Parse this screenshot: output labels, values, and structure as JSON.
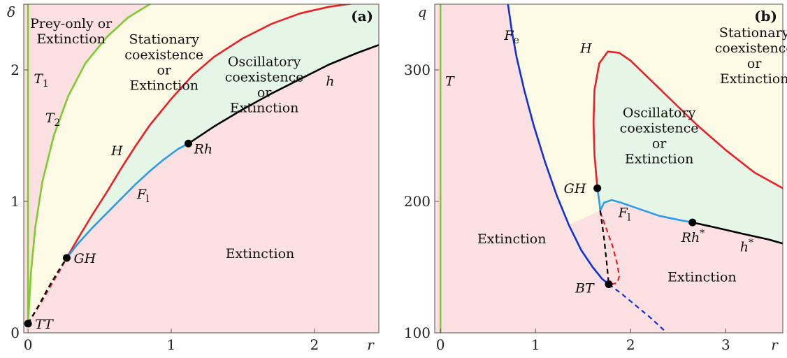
{
  "colors": {
    "pink": "#fde0e2",
    "yellow": "#fdfbe6",
    "green": "#e6f6e6",
    "T_green": "#7ccc2c",
    "hopf_red": "#e8202a",
    "fold_blue": "#2f9ae6",
    "fold_e_blue": "#1030d8",
    "homoclinic_black": "#000000"
  },
  "chart_data": [
    {
      "panel": "(a)",
      "type": "line",
      "xlabel": "r",
      "ylabel": "δ",
      "xlim": [
        -0.03,
        2.45
      ],
      "ylim": [
        0,
        2.5
      ],
      "xticks": [
        0,
        1,
        2
      ],
      "yticks": [
        0,
        1,
        2
      ],
      "grid": false,
      "regions": [
        {
          "label_lines": [
            "Prey-only or",
            "Extinction"
          ],
          "at": [
            0.3,
            2.32
          ]
        },
        {
          "label_lines": [
            "Stationary",
            "coexistence",
            "or",
            "Extinction"
          ],
          "at": [
            0.95,
            2.2
          ]
        },
        {
          "label_lines": [
            "Oscillatory",
            "coexistence",
            "or",
            "Extinction"
          ],
          "at": [
            1.65,
            2.03
          ]
        },
        {
          "label_lines": [
            "Extinction"
          ],
          "at": [
            1.62,
            0.57
          ]
        }
      ],
      "curves": [
        {
          "name": "T1",
          "label": "T",
          "sub": "1",
          "label_at": [
            0.04,
            1.9
          ],
          "color": "T_green",
          "dash": false,
          "x": [
            0,
            0
          ],
          "y": [
            0.07,
            2.5
          ]
        },
        {
          "name": "T2",
          "label": "T",
          "sub": "2",
          "label_at": [
            0.12,
            1.6
          ],
          "color": "T_green",
          "dash": false,
          "x": [
            0,
            0.02,
            0.05,
            0.1,
            0.18,
            0.28,
            0.4,
            0.55,
            0.7,
            0.85,
            0.98
          ],
          "y": [
            0.07,
            0.45,
            0.8,
            1.15,
            1.5,
            1.8,
            2.05,
            2.25,
            2.4,
            2.5,
            2.55
          ]
        },
        {
          "name": "H",
          "label": "H",
          "label_at": [
            0.58,
            1.35
          ],
          "color": "hopf_red",
          "dash": false,
          "x": [
            0.27,
            0.35,
            0.45,
            0.55,
            0.65,
            0.75,
            0.85,
            1.0,
            1.15,
            1.3,
            1.5,
            1.7,
            1.9,
            2.1,
            2.3,
            2.42
          ],
          "y": [
            0.57,
            0.72,
            0.9,
            1.07,
            1.25,
            1.42,
            1.58,
            1.78,
            1.96,
            2.1,
            2.24,
            2.35,
            2.43,
            2.48,
            2.51,
            2.52
          ]
        },
        {
          "name": "H-dashed",
          "color": "hopf_red",
          "dash": true,
          "x": [
            0.0,
            0.08,
            0.16,
            0.22,
            0.27
          ],
          "y": [
            0.07,
            0.21,
            0.36,
            0.47,
            0.57
          ]
        },
        {
          "name": "Fl",
          "label": "F",
          "sub": "l",
          "label_at": [
            0.76,
            1.02
          ],
          "color": "fold_blue",
          "dash": false,
          "x": [
            0.27,
            0.35,
            0.45,
            0.55,
            0.65,
            0.75,
            0.85,
            0.95,
            1.05,
            1.12
          ],
          "y": [
            0.57,
            0.68,
            0.8,
            0.91,
            1.02,
            1.13,
            1.23,
            1.32,
            1.4,
            1.44
          ]
        },
        {
          "name": "h",
          "label": "h",
          "label_at": [
            2.08,
            1.88
          ],
          "color": "homoclinic_black",
          "dash": false,
          "x": [
            1.12,
            1.3,
            1.5,
            1.7,
            1.9,
            2.1,
            2.3,
            2.45
          ],
          "y": [
            1.44,
            1.57,
            1.7,
            1.82,
            1.93,
            2.04,
            2.13,
            2.19
          ]
        },
        {
          "name": "h-dashed",
          "color": "homoclinic_black",
          "dash": true,
          "x": [
            0.0,
            0.07,
            0.14,
            0.2,
            0.27
          ],
          "y": [
            0.07,
            0.2,
            0.34,
            0.45,
            0.57
          ]
        }
      ],
      "points": [
        {
          "label": "TT",
          "x": 0.0,
          "y": 0.07,
          "label_dx": 10,
          "label_dy": 7
        },
        {
          "label": "GH",
          "x": 0.27,
          "y": 0.57,
          "label_dx": 10,
          "label_dy": 7
        },
        {
          "label": "Rh",
          "x": 1.12,
          "y": 1.44,
          "label_dx": 8,
          "label_dy": 14
        }
      ]
    },
    {
      "panel": "(b)",
      "type": "line",
      "xlabel": "r",
      "ylabel": "q",
      "xlim": [
        -0.06,
        3.6
      ],
      "ylim": [
        100,
        350
      ],
      "xticks": [
        0,
        1,
        2,
        3
      ],
      "yticks": [
        100,
        200,
        300
      ],
      "grid": false,
      "regions": [
        {
          "label_lines": [
            "Stationary",
            "coexistence",
            "or",
            "Extinction"
          ],
          "at": [
            3.3,
            325
          ]
        },
        {
          "label_lines": [
            "Oscillatory",
            "coexistence",
            "or",
            "Extinction"
          ],
          "at": [
            2.3,
            264
          ]
        },
        {
          "label_lines": [
            "Extinction"
          ],
          "at": [
            0.75,
            168
          ]
        },
        {
          "label_lines": [
            "Extinction"
          ],
          "at": [
            2.75,
            139
          ]
        }
      ],
      "curves": [
        {
          "name": "T",
          "label": "T",
          "label_at": [
            0.05,
            288
          ],
          "color": "T_green",
          "dash": false,
          "x": [
            0,
            0
          ],
          "y": [
            100,
            350
          ]
        },
        {
          "name": "Fe",
          "label": "F",
          "sub": "e",
          "label_at": [
            0.67,
            323
          ],
          "color": "fold_e_blue",
          "dash": false,
          "x": [
            0.71,
            0.75,
            0.8,
            0.88,
            0.98,
            1.1,
            1.22,
            1.35,
            1.48,
            1.6,
            1.7,
            1.77
          ],
          "y": [
            350,
            330,
            310,
            285,
            258,
            230,
            205,
            182,
            163,
            150,
            141,
            137
          ]
        },
        {
          "name": "Fe-dashed",
          "color": "fold_e_blue",
          "dash": true,
          "x": [
            1.77,
            1.9,
            2.05,
            2.2,
            2.35
          ],
          "y": [
            137,
            130,
            121,
            112,
            102
          ]
        },
        {
          "name": "H",
          "label": "H",
          "label_at": [
            1.47,
            313
          ],
          "color": "hopf_red",
          "dash": false,
          "x": [
            1.65,
            1.62,
            1.61,
            1.62,
            1.67,
            1.76,
            1.88,
            2.0,
            2.2,
            2.4,
            2.7,
            3.0,
            3.3,
            3.6
          ],
          "y": [
            210,
            235,
            260,
            285,
            305,
            314,
            313,
            307,
            293,
            279,
            258,
            239,
            222,
            210
          ]
        },
        {
          "name": "H-dashed",
          "color": "hopf_red",
          "dash": true,
          "x": [
            1.68,
            1.74,
            1.81,
            1.86,
            1.88,
            1.86,
            1.8
          ],
          "y": [
            192,
            180,
            166,
            152,
            143,
            138,
            137
          ]
        },
        {
          "name": "Fl",
          "label": "F",
          "sub": "l",
          "label_at": [
            1.87,
            188
          ],
          "color": "fold_blue",
          "dash": false,
          "x": [
            1.65,
            1.67,
            1.68,
            1.72,
            1.8,
            1.9,
            2.1,
            2.3,
            2.5,
            2.65
          ],
          "y": [
            210,
            200,
            193,
            199,
            201,
            199,
            194,
            189,
            186,
            184
          ]
        },
        {
          "name": "h*",
          "label": "h",
          "sup": "*",
          "label_at": [
            3.15,
            162
          ],
          "color": "homoclinic_black",
          "dash": false,
          "x": [
            2.65,
            2.9,
            3.2,
            3.45,
            3.6
          ],
          "y": [
            184,
            180,
            175,
            171,
            168
          ]
        },
        {
          "name": "h*-dashed",
          "color": "homoclinic_black",
          "dash": true,
          "x": [
            1.68,
            1.72,
            1.75,
            1.77
          ],
          "y": [
            193,
            172,
            152,
            137
          ]
        }
      ],
      "points": [
        {
          "label": "GH",
          "x": 1.65,
          "y": 210,
          "label_dx": -48,
          "label_dy": 7
        },
        {
          "label": "BT",
          "x": 1.77,
          "y": 137,
          "label_dx": -48,
          "label_dy": 12
        },
        {
          "label": "Rh",
          "sup": "*",
          "x": 2.65,
          "y": 184,
          "label_dx": -16,
          "label_dy": 28
        }
      ]
    }
  ]
}
